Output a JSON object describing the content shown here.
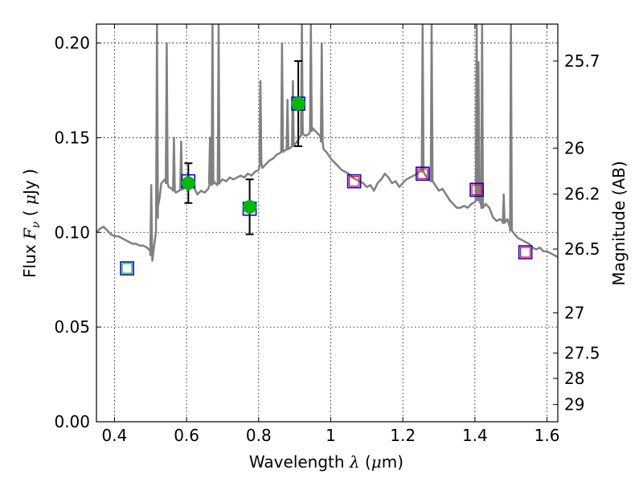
{
  "chart_data": {
    "type": "scatter",
    "xlabel": "Wavelength  λ (μm)",
    "ylabel": "Flux  F_ν  ( μJy )",
    "y2label": "Magnitude (AB)",
    "xlim": [
      0.35,
      1.63
    ],
    "ylim": [
      0.0,
      0.21
    ],
    "grid": true,
    "x_ticks": [
      0.4,
      0.6,
      0.8,
      1.0,
      1.2,
      1.4,
      1.6
    ],
    "x_tick_labels": [
      "0.4",
      "0.6",
      "0.8",
      "1",
      "1.2",
      "1.4",
      "1.6"
    ],
    "y_ticks": [
      0.0,
      0.05,
      0.1,
      0.15,
      0.2
    ],
    "y_tick_labels": [
      "0.00",
      "0.05",
      "0.10",
      "0.15",
      "0.20"
    ],
    "mag_ticks": [
      {
        "label": "25.7",
        "flux": 0.1905
      },
      {
        "label": "26",
        "flux": 0.1445
      },
      {
        "label": "26.2",
        "flux": 0.1202
      },
      {
        "label": "26.5",
        "flux": 0.0912
      },
      {
        "label": "27",
        "flux": 0.0575
      },
      {
        "label": "27.5",
        "flux": 0.0363
      },
      {
        "label": "28",
        "flux": 0.0229
      },
      {
        "label": "29",
        "flux": 0.0091
      }
    ],
    "series": [
      {
        "kind": "model_spectrum",
        "color": "#808080",
        "x": [
          0.35,
          0.36,
          0.37,
          0.38,
          0.39,
          0.4,
          0.41,
          0.42,
          0.43,
          0.44,
          0.45,
          0.46,
          0.47,
          0.48,
          0.49,
          0.5,
          0.505,
          0.51,
          0.515,
          0.52,
          0.525,
          0.53,
          0.54,
          0.55,
          0.56,
          0.57,
          0.58,
          0.59,
          0.6,
          0.61,
          0.62,
          0.63,
          0.64,
          0.65,
          0.66,
          0.665,
          0.67,
          0.675,
          0.68,
          0.685,
          0.69,
          0.7,
          0.71,
          0.72,
          0.73,
          0.74,
          0.75,
          0.76,
          0.77,
          0.78,
          0.79,
          0.8,
          0.805,
          0.81,
          0.82,
          0.83,
          0.84,
          0.85,
          0.86,
          0.87,
          0.88,
          0.89,
          0.9,
          0.91,
          0.92,
          0.93,
          0.94,
          0.95,
          0.96,
          0.97,
          0.975,
          0.98,
          0.99,
          1.0,
          1.01,
          1.02,
          1.03,
          1.04,
          1.05,
          1.06,
          1.07,
          1.08,
          1.09,
          1.1,
          1.11,
          1.12,
          1.13,
          1.14,
          1.15,
          1.16,
          1.17,
          1.18,
          1.19,
          1.2,
          1.21,
          1.22,
          1.23,
          1.24,
          1.25,
          1.26,
          1.27,
          1.28,
          1.29,
          1.3,
          1.31,
          1.32,
          1.33,
          1.34,
          1.35,
          1.36,
          1.37,
          1.38,
          1.39,
          1.4,
          1.405,
          1.41,
          1.42,
          1.43,
          1.44,
          1.45,
          1.46,
          1.47,
          1.48,
          1.49,
          1.5,
          1.51,
          1.52,
          1.53,
          1.54,
          1.55,
          1.56,
          1.57,
          1.58,
          1.59,
          1.6,
          1.61,
          1.62,
          1.63
        ],
        "y": [
          0.1,
          0.102,
          0.103,
          0.101,
          0.099,
          0.098,
          0.098,
          0.097,
          0.096,
          0.095,
          0.094,
          0.094,
          0.093,
          0.093,
          0.092,
          0.09,
          0.085,
          0.093,
          0.1,
          0.113,
          0.118,
          0.126,
          0.128,
          0.124,
          0.123,
          0.121,
          0.122,
          0.123,
          0.124,
          0.125,
          0.124,
          0.12,
          0.122,
          0.121,
          0.123,
          0.126,
          0.125,
          0.127,
          0.126,
          0.125,
          0.126,
          0.128,
          0.127,
          0.129,
          0.128,
          0.129,
          0.13,
          0.129,
          0.131,
          0.13,
          0.132,
          0.133,
          0.137,
          0.134,
          0.136,
          0.138,
          0.139,
          0.141,
          0.142,
          0.143,
          0.144,
          0.145,
          0.146,
          0.149,
          0.152,
          0.151,
          0.152,
          0.155,
          0.153,
          0.151,
          0.148,
          0.144,
          0.142,
          0.139,
          0.137,
          0.135,
          0.133,
          0.132,
          0.131,
          0.129,
          0.128,
          0.127,
          0.126,
          0.124,
          0.125,
          0.122,
          0.126,
          0.128,
          0.131,
          0.129,
          0.126,
          0.127,
          0.124,
          0.126,
          0.128,
          0.129,
          0.13,
          0.131,
          0.133,
          0.131,
          0.128,
          0.127,
          0.125,
          0.122,
          0.123,
          0.12,
          0.117,
          0.115,
          0.113,
          0.113,
          0.114,
          0.113,
          0.115,
          0.116,
          0.118,
          0.117,
          0.113,
          0.115,
          0.113,
          0.108,
          0.106,
          0.107,
          0.105,
          0.107,
          0.101,
          0.099,
          0.097,
          0.096,
          0.095,
          0.094,
          0.092,
          0.091,
          0.092,
          0.09,
          0.09,
          0.089,
          0.088,
          0.087
        ],
        "emission_lines": [
          {
            "x": 0.502,
            "peak": 0.125
          },
          {
            "x": 0.518,
            "peak": 0.21
          },
          {
            "x": 0.545,
            "peak": 0.2
          },
          {
            "x": 0.565,
            "peak": 0.15
          },
          {
            "x": 0.585,
            "peak": 0.148
          },
          {
            "x": 0.665,
            "peak": 0.15
          },
          {
            "x": 0.672,
            "peak": 0.21
          },
          {
            "x": 0.689,
            "peak": 0.21
          },
          {
            "x": 0.805,
            "peak": 0.18
          },
          {
            "x": 0.865,
            "peak": 0.2
          },
          {
            "x": 0.88,
            "peak": 0.17
          },
          {
            "x": 0.895,
            "peak": 0.18
          },
          {
            "x": 0.92,
            "peak": 0.21
          },
          {
            "x": 0.945,
            "peak": 0.21
          },
          {
            "x": 0.975,
            "peak": 0.2
          },
          {
            "x": 1.255,
            "peak": 0.21
          },
          {
            "x": 1.28,
            "peak": 0.21
          },
          {
            "x": 1.405,
            "peak": 0.21
          },
          {
            "x": 1.41,
            "peak": 0.19
          },
          {
            "x": 1.42,
            "peak": 0.21
          },
          {
            "x": 1.48,
            "peak": 0.12
          },
          {
            "x": 1.5,
            "peak": 0.21
          }
        ]
      },
      {
        "kind": "observed_photometry",
        "marker": "circle",
        "color": "#00bb00",
        "errcolor": "#000000",
        "points": [
          {
            "x": 0.605,
            "y": 0.126,
            "yerr": [
              0.0105,
              0.0105
            ]
          },
          {
            "x": 0.775,
            "y": 0.1135,
            "yerr": [
              0.0145,
              0.0145
            ]
          },
          {
            "x": 0.91,
            "y": 0.168,
            "yerr": [
              0.0225,
              0.0225
            ]
          }
        ]
      },
      {
        "kind": "model_bandpass_flux",
        "marker": "square",
        "color": "#0000ff",
        "points": [
          {
            "x": 0.435,
            "y": 0.081
          },
          {
            "x": 0.605,
            "y": 0.127
          },
          {
            "x": 0.775,
            "y": 0.1125
          },
          {
            "x": 0.91,
            "y": 0.168
          },
          {
            "x": 1.065,
            "y": 0.127
          },
          {
            "x": 1.255,
            "y": 0.131
          },
          {
            "x": 1.405,
            "y": 0.1225
          },
          {
            "x": 1.54,
            "y": 0.0895
          }
        ]
      },
      {
        "kind": "inner_markers",
        "marker": "small-square",
        "points": [
          {
            "x": 0.435,
            "y": 0.081,
            "color": "#00bb00"
          },
          {
            "x": 1.065,
            "y": 0.127,
            "color": "#ff0000"
          },
          {
            "x": 1.255,
            "y": 0.131,
            "color": "#ff0000"
          },
          {
            "x": 1.405,
            "y": 0.1225,
            "color": "#ff0000"
          },
          {
            "x": 1.54,
            "y": 0.0895,
            "color": "#ff0000"
          }
        ]
      }
    ]
  }
}
